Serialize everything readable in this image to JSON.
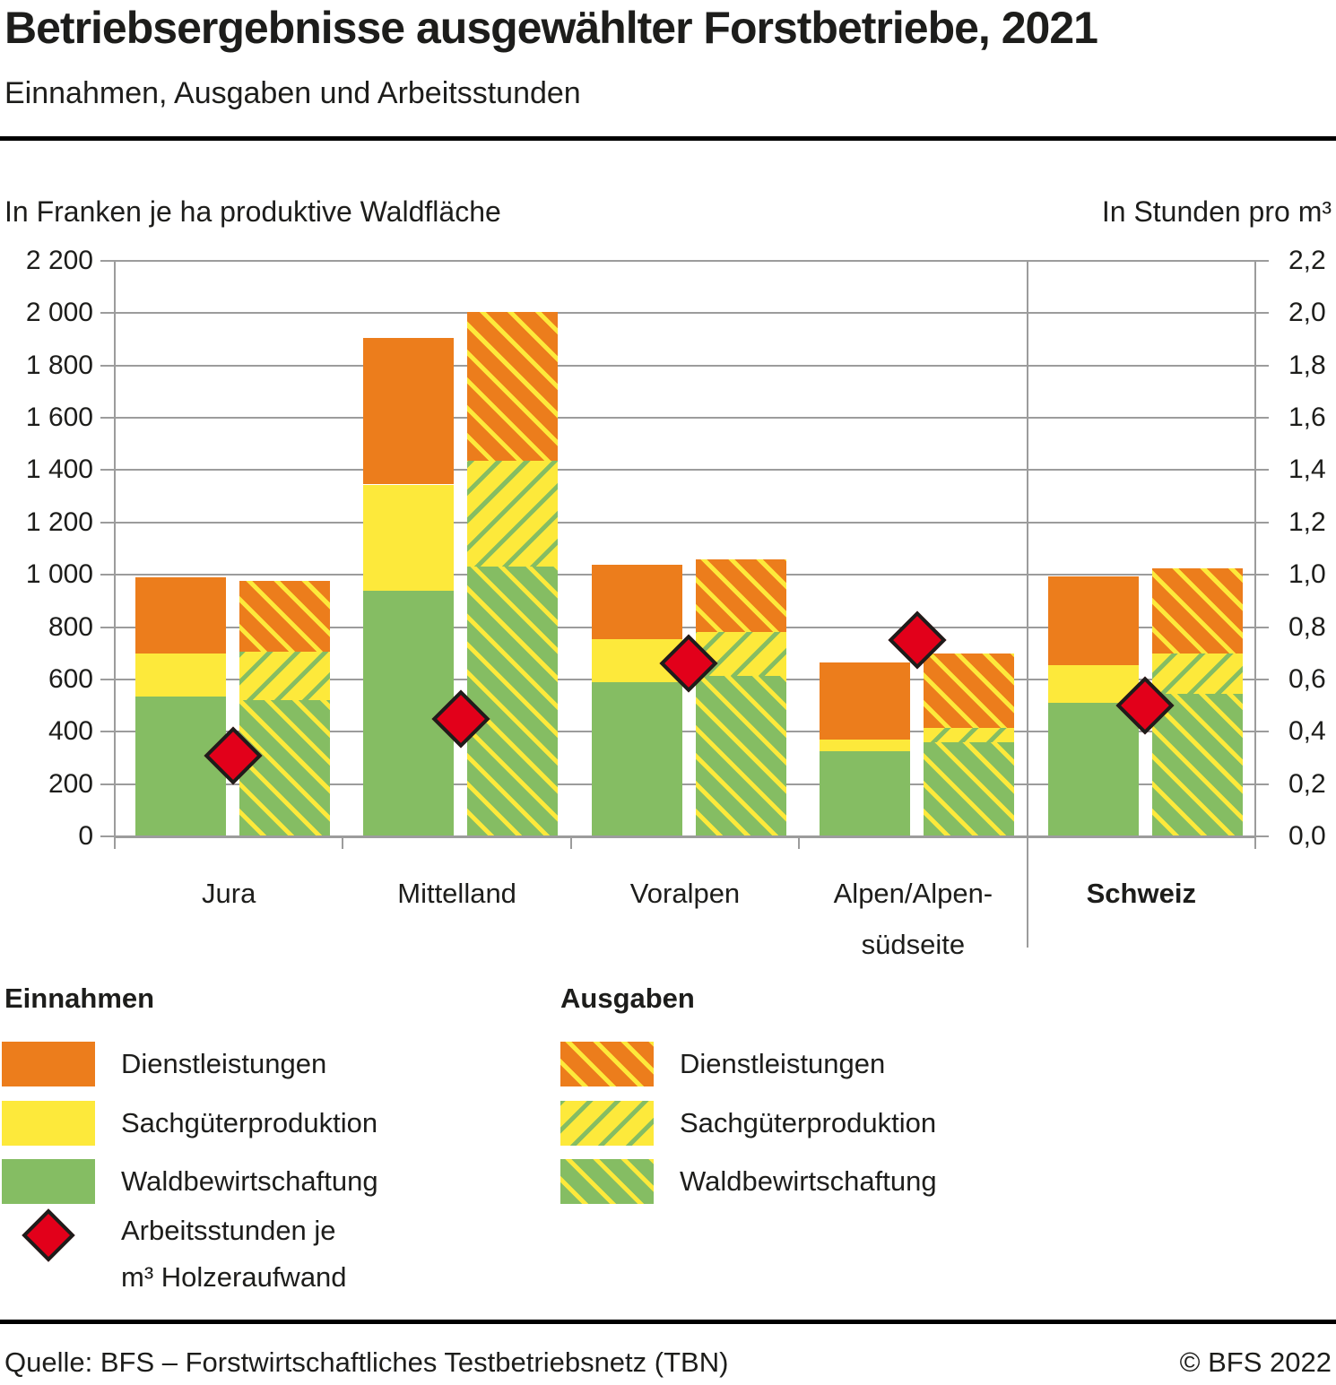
{
  "header": {
    "title": "Betriebsergebnisse ausgewählter Forstbetriebe, 2021",
    "subtitle": "Einnahmen, Ausgaben und Arbeitsstunden"
  },
  "axes": {
    "left_caption": "In Franken je ha produktive Waldfläche",
    "right_caption": "In Stunden pro m³",
    "left_ticks": [
      "2 200",
      "2 000",
      "1 800",
      "1 600",
      "1 400",
      "1 200",
      "1 000",
      "800",
      "600",
      "400",
      "200",
      "0"
    ],
    "right_ticks": [
      "2,2",
      "2,0",
      "1,8",
      "1,6",
      "1,4",
      "1,2",
      "1,0",
      "0,8",
      "0,6",
      "0,4",
      "0,2",
      "0,0"
    ]
  },
  "chart_data": {
    "type": "bar",
    "subtype": "grouped-stacked with point markers on secondary axis",
    "title": "Betriebsergebnisse ausgewählter Forstbetriebe, 2021",
    "subtitle": "Einnahmen, Ausgaben und Arbeitsstunden",
    "xlabel": "",
    "ylabel_left": "In Franken je ha produktive Waldfläche",
    "ylabel_right": "In Stunden pro m³",
    "ylim_left": [
      0,
      2200
    ],
    "ylim_right": [
      0,
      2.2
    ],
    "grid": true,
    "categories": [
      "Jura",
      "Mittelland",
      "Voralpen",
      "Alpen/Alpensüdseite",
      "Schweiz"
    ],
    "category_lines": [
      [
        "Jura"
      ],
      [
        "Mittelland"
      ],
      [
        "Voralpen"
      ],
      [
        "Alpen/Alpen-",
        "südseite"
      ],
      [
        "Schweiz"
      ]
    ],
    "category_emphasis": [
      false,
      false,
      false,
      false,
      true
    ],
    "series": [
      {
        "name": "Einnahmen – Waldbewirtschaftung",
        "stack": "einnahmen",
        "segment": "waldbewirtschaftung",
        "values": [
          535,
          940,
          590,
          325,
          510
        ]
      },
      {
        "name": "Einnahmen – Sachgüterproduktion",
        "stack": "einnahmen",
        "segment": "sachgueterproduktion",
        "values": [
          165,
          405,
          165,
          45,
          145
        ]
      },
      {
        "name": "Einnahmen – Dienstleistungen",
        "stack": "einnahmen",
        "segment": "dienstleistungen",
        "values": [
          290,
          560,
          285,
          295,
          340
        ]
      },
      {
        "name": "Ausgaben – Waldbewirtschaftung",
        "stack": "ausgaben",
        "segment": "waldbewirtschaftung",
        "values": [
          520,
          1030,
          615,
          360,
          545
        ]
      },
      {
        "name": "Ausgaben – Sachgüterproduktion",
        "stack": "ausgaben",
        "segment": "sachgueterproduktion",
        "values": [
          185,
          405,
          165,
          55,
          155
        ]
      },
      {
        "name": "Ausgaben – Dienstleistungen",
        "stack": "ausgaben",
        "segment": "dienstleistungen",
        "values": [
          270,
          570,
          280,
          285,
          325
        ]
      }
    ],
    "stack_totals": {
      "einnahmen": [
        990,
        1905,
        1040,
        665,
        995
      ],
      "ausgaben": [
        975,
        2005,
        1060,
        700,
        1025
      ]
    },
    "markers": {
      "name": "Arbeitsstunden je m³ Holzeraufwand",
      "axis": "right",
      "values": [
        0.31,
        0.45,
        0.66,
        0.75,
        0.5
      ]
    },
    "legend_position": "below"
  },
  "legend": {
    "einnahmen": {
      "title": "Einnahmen",
      "items": [
        {
          "label": "Dienstleistungen",
          "swatch": "orange-solid"
        },
        {
          "label": "Sachgüterproduktion",
          "swatch": "yellow-solid"
        },
        {
          "label": "Waldbewirtschaftung",
          "swatch": "green-solid"
        },
        {
          "label_line1": "Arbeitsstunden je",
          "label_line2": "m³ Holzeraufwand",
          "swatch": "red-diamond"
        }
      ]
    },
    "ausgaben": {
      "title": "Ausgaben",
      "items": [
        {
          "label": "Dienstleistungen",
          "swatch": "orange-hatch"
        },
        {
          "label": "Sachgüterproduktion",
          "swatch": "yellow-hatch"
        },
        {
          "label": "Waldbewirtschaftung",
          "swatch": "green-hatch"
        }
      ]
    }
  },
  "footer": {
    "source": "Quelle: BFS – Forstwirtschaftliches Testbetriebsnetz (TBN)",
    "copyright": "© BFS 2022"
  },
  "colors": {
    "orange": "#ec7d1c",
    "yellow": "#fde93b",
    "green": "#85bd63",
    "red": "#e2001a",
    "grid": "#9c9c9c",
    "text": "#1d1d1b"
  }
}
